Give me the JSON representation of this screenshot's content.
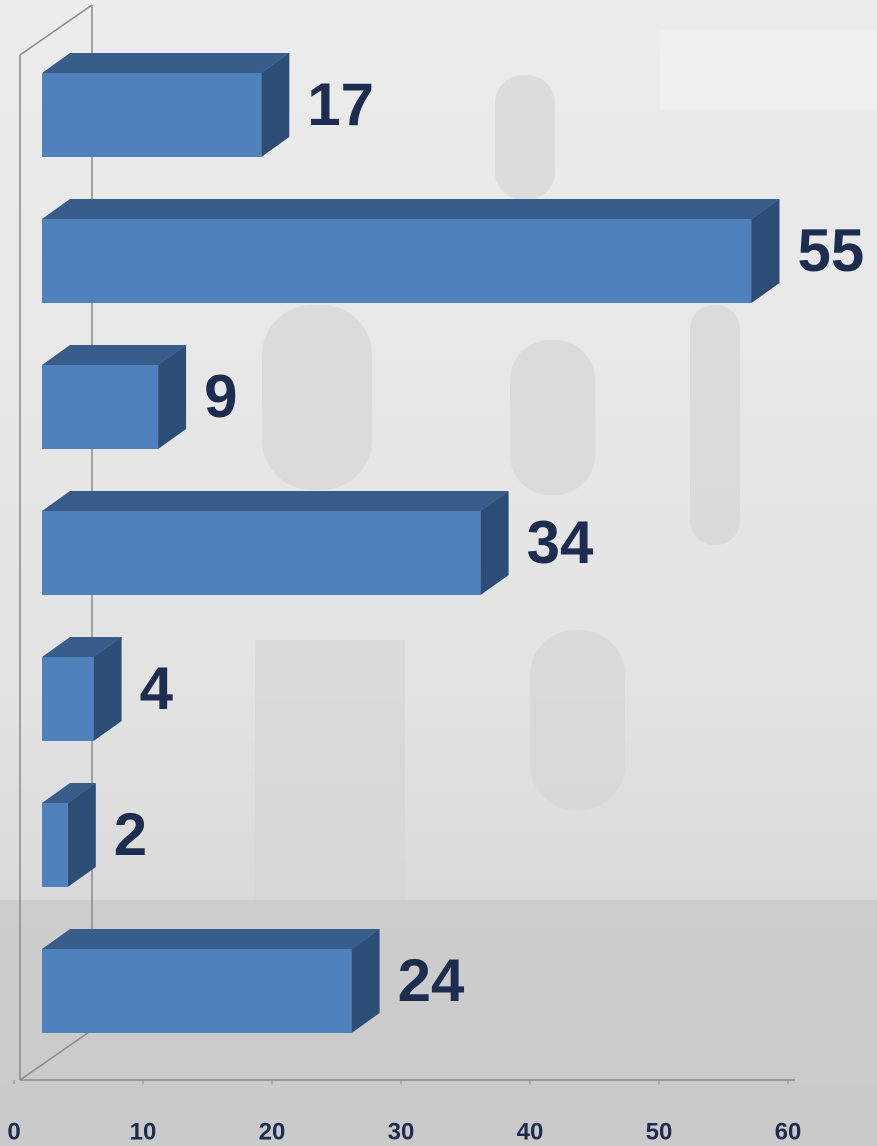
{
  "chart_data": {
    "type": "bar",
    "orientation": "horizontal",
    "categories": [
      null,
      null,
      null,
      null,
      null,
      null,
      null
    ],
    "values": [
      17,
      55,
      9,
      34,
      4,
      2,
      24
    ],
    "color": "#4f81bd",
    "xlim": [
      0,
      60
    ],
    "xticks": [
      0,
      10,
      20,
      30,
      40,
      50,
      60
    ]
  }
}
